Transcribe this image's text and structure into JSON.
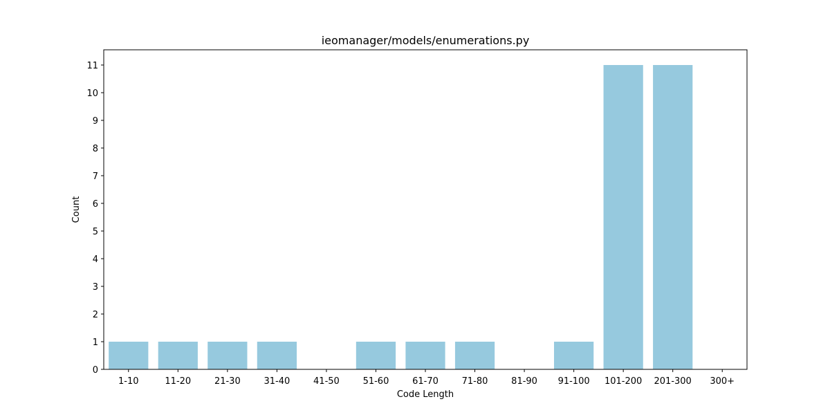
{
  "chart_data": {
    "type": "bar",
    "title": "ieomanager/models/enumerations.py",
    "xlabel": "Code Length",
    "ylabel": "Count",
    "categories": [
      "1-10",
      "11-20",
      "21-30",
      "31-40",
      "41-50",
      "51-60",
      "61-70",
      "71-80",
      "81-90",
      "91-100",
      "101-200",
      "201-300",
      "300+"
    ],
    "values": [
      1,
      1,
      1,
      1,
      0,
      1,
      1,
      1,
      0,
      1,
      11,
      11,
      0
    ],
    "yticks": [
      0,
      1,
      2,
      3,
      4,
      5,
      6,
      7,
      8,
      9,
      10,
      11
    ],
    "ylim": [
      0,
      11.55
    ],
    "grid": false,
    "bar_color": "#96c9de"
  }
}
